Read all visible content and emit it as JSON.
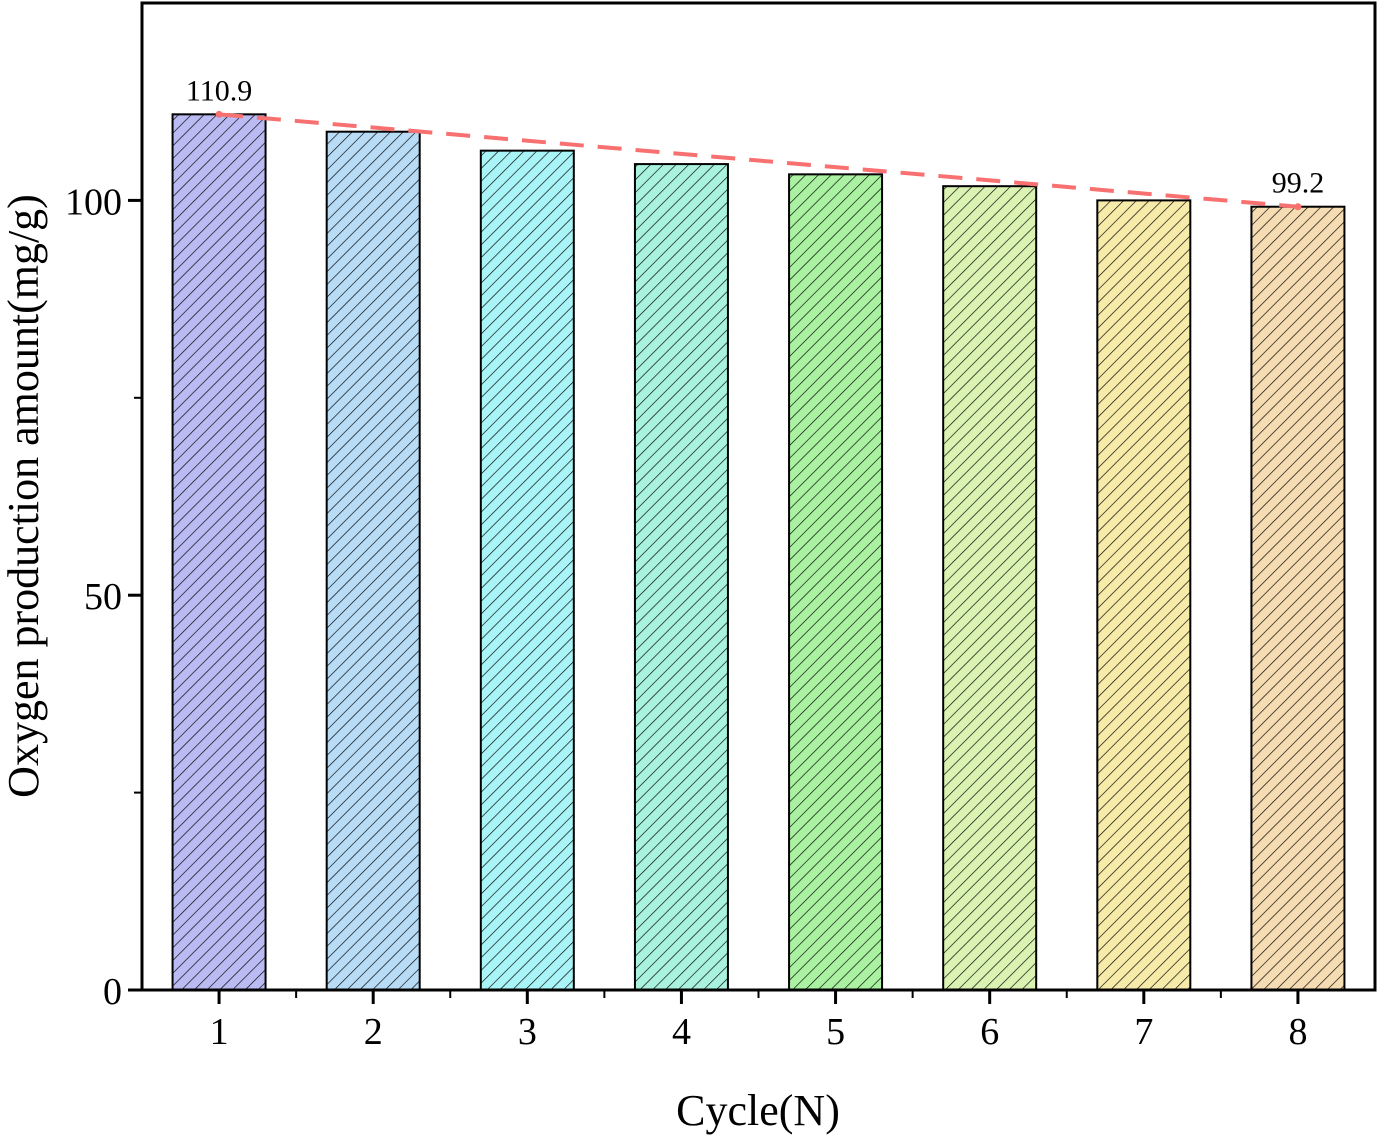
{
  "chart_data": {
    "type": "bar",
    "title": "",
    "xlabel": "Cycle(N)",
    "ylabel": "Oxygen production amount(mg/g)",
    "categories": [
      "1",
      "2",
      "3",
      "4",
      "5",
      "6",
      "7",
      "8"
    ],
    "values": [
      110.9,
      108.7,
      106.3,
      104.6,
      103.3,
      101.8,
      100.0,
      99.2
    ],
    "colors": [
      "#b9bbf2",
      "#b8dcf6",
      "#a9f4f6",
      "#a9f2dd",
      "#aaf2a2",
      "#daf2b2",
      "#f6eba9",
      "#f5dcb2"
    ],
    "ylim": [
      0,
      125
    ],
    "yticks": [
      0,
      50,
      100
    ],
    "yminor": [
      25,
      75
    ],
    "grid": false,
    "legend": "none",
    "annotations": [
      {
        "text": "110.9",
        "category": "1"
      },
      {
        "text": "99.2",
        "category": "8"
      }
    ],
    "trend_line": {
      "from_category": "1",
      "to_category": "8",
      "from_value": 110.9,
      "to_value": 99.2,
      "color": "#f87070",
      "style": "dashed"
    }
  }
}
